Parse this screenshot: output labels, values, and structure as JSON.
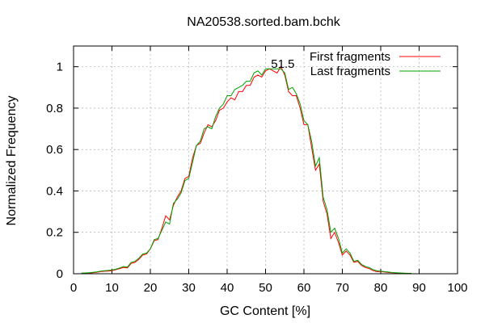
{
  "chart_data": {
    "type": "line",
    "title": "NA20538.sorted.bam.bchk",
    "xlabel": "GC Content [%]",
    "ylabel": "Normalized Frequency",
    "xlim": [
      0,
      100
    ],
    "ylim": [
      0,
      1.1
    ],
    "xticks": [
      0,
      10,
      20,
      30,
      40,
      50,
      60,
      70,
      80,
      90,
      100
    ],
    "yticks": [
      0,
      0.2,
      0.4,
      0.6,
      0.8,
      1
    ],
    "ytick_labels": [
      "0",
      "0.2",
      "0.4",
      "0.6",
      "0.8",
      "1"
    ],
    "grid": true,
    "legend_position": "top-right",
    "annotation": {
      "text": "51.5",
      "x": 54.5,
      "y": 0.99
    },
    "series": [
      {
        "name": "First fragments",
        "color": "#ff0000",
        "x": [
          2,
          3,
          4,
          5,
          6,
          7,
          8,
          9,
          10,
          11,
          12,
          13,
          14,
          15,
          16,
          17,
          18,
          19,
          20,
          21,
          22,
          23,
          24,
          25,
          26,
          27,
          28,
          29,
          30,
          31,
          32,
          33,
          34,
          35,
          36,
          37,
          38,
          39,
          40,
          41,
          42,
          43,
          44,
          45,
          46,
          47,
          48,
          49,
          50,
          51,
          52,
          53,
          54,
          55,
          56,
          57,
          58,
          59,
          60,
          61,
          62,
          63,
          64,
          65,
          66,
          67,
          68,
          69,
          70,
          71,
          72,
          73,
          74,
          75,
          76,
          77,
          78,
          79,
          80,
          81,
          82,
          83,
          84,
          85,
          86,
          87,
          88
        ],
        "y": [
          0.002,
          0.003,
          0.003,
          0.005,
          0.007,
          0.01,
          0.012,
          0.013,
          0.015,
          0.02,
          0.025,
          0.03,
          0.028,
          0.05,
          0.055,
          0.07,
          0.09,
          0.095,
          0.12,
          0.16,
          0.165,
          0.22,
          0.28,
          0.26,
          0.33,
          0.37,
          0.4,
          0.46,
          0.47,
          0.56,
          0.62,
          0.63,
          0.68,
          0.72,
          0.71,
          0.74,
          0.79,
          0.8,
          0.83,
          0.85,
          0.84,
          0.88,
          0.88,
          0.91,
          0.91,
          0.95,
          0.96,
          0.95,
          0.98,
          0.99,
          0.98,
          0.97,
          1.0,
          0.96,
          0.88,
          0.86,
          0.86,
          0.8,
          0.72,
          0.72,
          0.61,
          0.5,
          0.53,
          0.35,
          0.29,
          0.17,
          0.2,
          0.15,
          0.09,
          0.11,
          0.09,
          0.055,
          0.06,
          0.04,
          0.03,
          0.025,
          0.015,
          0.01,
          0.01,
          0.008,
          0.006,
          0.005,
          0.004,
          0.003,
          0.002,
          0.002,
          0.001
        ]
      },
      {
        "name": "Last fragments",
        "color": "#00a000",
        "x": [
          2,
          3,
          4,
          5,
          6,
          7,
          8,
          9,
          10,
          11,
          12,
          13,
          14,
          15,
          16,
          17,
          18,
          19,
          20,
          21,
          22,
          23,
          24,
          25,
          26,
          27,
          28,
          29,
          30,
          31,
          32,
          33,
          34,
          35,
          36,
          37,
          38,
          39,
          40,
          41,
          42,
          43,
          44,
          45,
          46,
          47,
          48,
          49,
          50,
          51,
          52,
          53,
          54,
          55,
          56,
          57,
          58,
          59,
          60,
          61,
          62,
          63,
          64,
          65,
          66,
          67,
          68,
          69,
          70,
          71,
          72,
          73,
          74,
          75,
          76,
          77,
          78,
          79,
          80,
          81,
          82,
          83,
          84,
          85,
          86,
          87,
          88
        ],
        "y": [
          0.003,
          0.004,
          0.005,
          0.007,
          0.009,
          0.012,
          0.015,
          0.016,
          0.018,
          0.022,
          0.028,
          0.035,
          0.032,
          0.055,
          0.06,
          0.075,
          0.095,
          0.1,
          0.12,
          0.165,
          0.17,
          0.21,
          0.25,
          0.24,
          0.34,
          0.36,
          0.39,
          0.45,
          0.46,
          0.54,
          0.62,
          0.64,
          0.7,
          0.71,
          0.7,
          0.76,
          0.8,
          0.82,
          0.86,
          0.86,
          0.89,
          0.9,
          0.91,
          0.93,
          0.93,
          0.97,
          0.98,
          0.96,
          0.99,
          0.99,
          0.99,
          0.99,
          0.99,
          0.97,
          0.89,
          0.9,
          0.87,
          0.82,
          0.74,
          0.72,
          0.64,
          0.52,
          0.56,
          0.37,
          0.31,
          0.2,
          0.22,
          0.17,
          0.1,
          0.12,
          0.1,
          0.06,
          0.065,
          0.045,
          0.035,
          0.03,
          0.02,
          0.014,
          0.012,
          0.01,
          0.008,
          0.006,
          0.005,
          0.004,
          0.003,
          0.002,
          0.002
        ]
      }
    ]
  }
}
